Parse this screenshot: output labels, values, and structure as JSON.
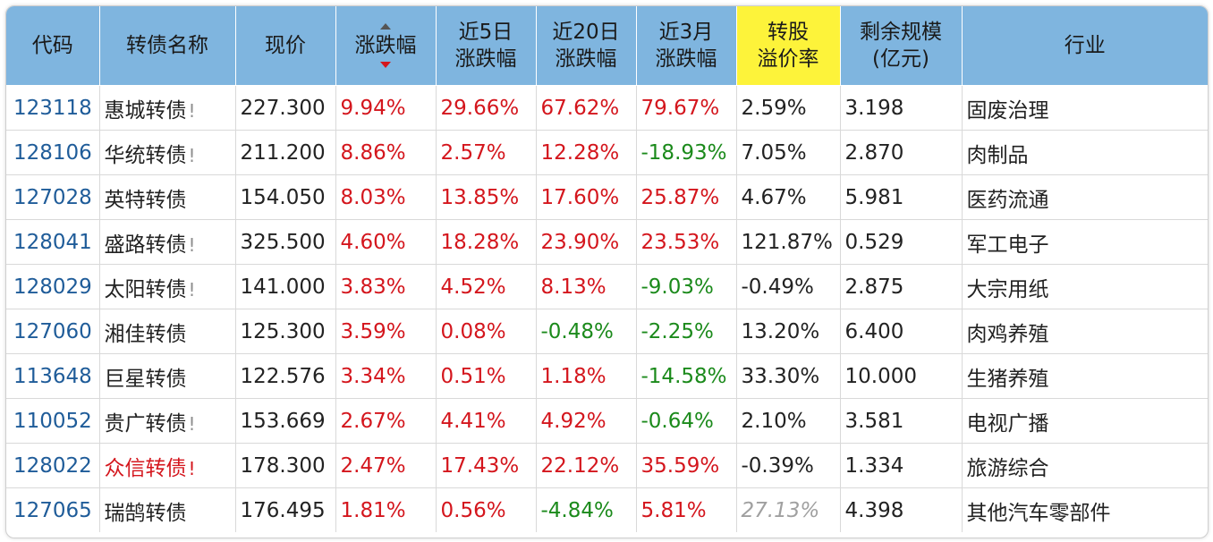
{
  "headers": {
    "code": "代码",
    "name": "转债名称",
    "price": "现价",
    "change": "涨跌幅",
    "chg5_l1": "近5日",
    "chg5_l2": "涨跌幅",
    "chg20_l1": "近20日",
    "chg20_l2": "涨跌幅",
    "chg3m_l1": "近3月",
    "chg3m_l2": "涨跌幅",
    "premium_l1": "转股",
    "premium_l2": "溢价率",
    "scale_l1": "剩余规模",
    "scale_l2": "(亿元)",
    "industry": "行业"
  },
  "colors": {
    "header_bg": "#7fb5df",
    "highlight_header_bg": "#fdf33a",
    "up": "#d4161d",
    "down": "#1b8a1b",
    "code": "#1f5c99"
  },
  "sort": {
    "column": "涨跌幅",
    "direction": "descending"
  },
  "rows": [
    {
      "code": "123118",
      "name": "惠城转债",
      "mark": "!",
      "mark_red": false,
      "name_red": false,
      "price": "227.300",
      "change": "9.94%",
      "chg5": "29.66%",
      "chg20": "67.62%",
      "chg3m": "79.67%",
      "premium": "2.59%",
      "scale": "3.198",
      "industry": "固废治理"
    },
    {
      "code": "128106",
      "name": "华统转债",
      "mark": "!",
      "mark_red": false,
      "name_red": false,
      "price": "211.200",
      "change": "8.86%",
      "chg5": "2.57%",
      "chg20": "12.28%",
      "chg3m": "-18.93%",
      "premium": "7.05%",
      "scale": "2.870",
      "industry": "肉制品"
    },
    {
      "code": "127028",
      "name": "英特转债",
      "mark": "",
      "mark_red": false,
      "name_red": false,
      "price": "154.050",
      "change": "8.03%",
      "chg5": "13.85%",
      "chg20": "17.60%",
      "chg3m": "25.87%",
      "premium": "4.67%",
      "scale": "5.981",
      "industry": "医药流通"
    },
    {
      "code": "128041",
      "name": "盛路转债",
      "mark": "!",
      "mark_red": false,
      "name_red": false,
      "price": "325.500",
      "change": "4.60%",
      "chg5": "18.28%",
      "chg20": "23.90%",
      "chg3m": "23.53%",
      "premium": "121.87%",
      "scale": "0.529",
      "industry": "军工电子"
    },
    {
      "code": "128029",
      "name": "太阳转债",
      "mark": "!",
      "mark_red": false,
      "name_red": false,
      "price": "141.000",
      "change": "3.83%",
      "chg5": "4.52%",
      "chg20": "8.13%",
      "chg3m": "-9.03%",
      "premium": "-0.49%",
      "scale": "2.875",
      "industry": "大宗用纸"
    },
    {
      "code": "127060",
      "name": "湘佳转债",
      "mark": "",
      "mark_red": false,
      "name_red": false,
      "price": "125.300",
      "change": "3.59%",
      "chg5": "0.08%",
      "chg20": "-0.48%",
      "chg3m": "-2.25%",
      "premium": "13.20%",
      "scale": "6.400",
      "industry": "肉鸡养殖"
    },
    {
      "code": "113648",
      "name": "巨星转债",
      "mark": "",
      "mark_red": false,
      "name_red": false,
      "price": "122.576",
      "change": "3.34%",
      "chg5": "0.51%",
      "chg20": "1.18%",
      "chg3m": "-14.58%",
      "premium": "33.30%",
      "scale": "10.000",
      "industry": "生猪养殖"
    },
    {
      "code": "110052",
      "name": "贵广转债",
      "mark": "!",
      "mark_red": false,
      "name_red": false,
      "price": "153.669",
      "change": "2.67%",
      "chg5": "4.41%",
      "chg20": "4.92%",
      "chg3m": "-0.64%",
      "premium": "2.10%",
      "scale": "3.581",
      "industry": "电视广播"
    },
    {
      "code": "128022",
      "name": "众信转债",
      "mark": "!",
      "mark_red": true,
      "name_red": true,
      "price": "178.300",
      "change": "2.47%",
      "chg5": "17.43%",
      "chg20": "22.12%",
      "chg3m": "35.59%",
      "premium": "-0.39%",
      "scale": "1.334",
      "industry": "旅游综合"
    },
    {
      "code": "127065",
      "name": "瑞鹄转债",
      "mark": "",
      "mark_red": false,
      "name_red": false,
      "price": "176.495",
      "change": "1.81%",
      "chg5": "0.56%",
      "chg20": "-4.84%",
      "chg3m": "5.81%",
      "premium": "27.13%",
      "premium_muted": true,
      "scale": "4.398",
      "industry": "其他汽车零部件"
    }
  ]
}
